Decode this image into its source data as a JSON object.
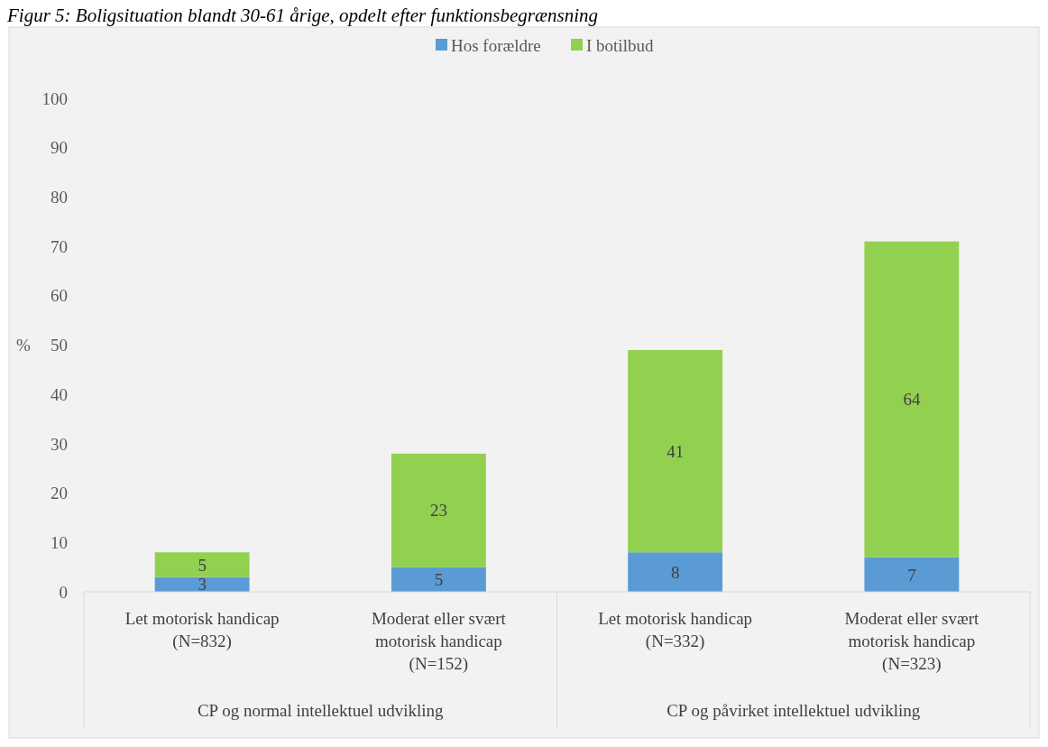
{
  "chart_data": {
    "type": "bar",
    "stacked": true,
    "title": "Figur 5: Boligsituation blandt 30-61 årige, opdelt efter funktionsbegrænsning",
    "ylabel": "%",
    "categories": [
      "Let motorisk handicap (N=832)",
      "Moderat eller svært motorisk handicap (N=152)",
      "Let motorisk handicap (N=332)",
      "Moderat eller svært motorisk handicap (N=323)"
    ],
    "series": [
      {
        "name": "Hos forældre",
        "color": "#5b9bd5",
        "values": [
          3,
          5,
          8,
          7
        ]
      },
      {
        "name": "I botilbud",
        "color": "#92d050",
        "values": [
          5,
          23,
          41,
          64
        ]
      }
    ],
    "ylim": [
      0,
      100
    ],
    "yticks": [
      0,
      10,
      20,
      30,
      40,
      50,
      60,
      70,
      80,
      90,
      100
    ],
    "data_labels": true,
    "legend": "top",
    "grid": false,
    "annotations": [
      "CP og normal intellektuel udvikling",
      "CP og påvirket intellektuel udvikling"
    ]
  }
}
